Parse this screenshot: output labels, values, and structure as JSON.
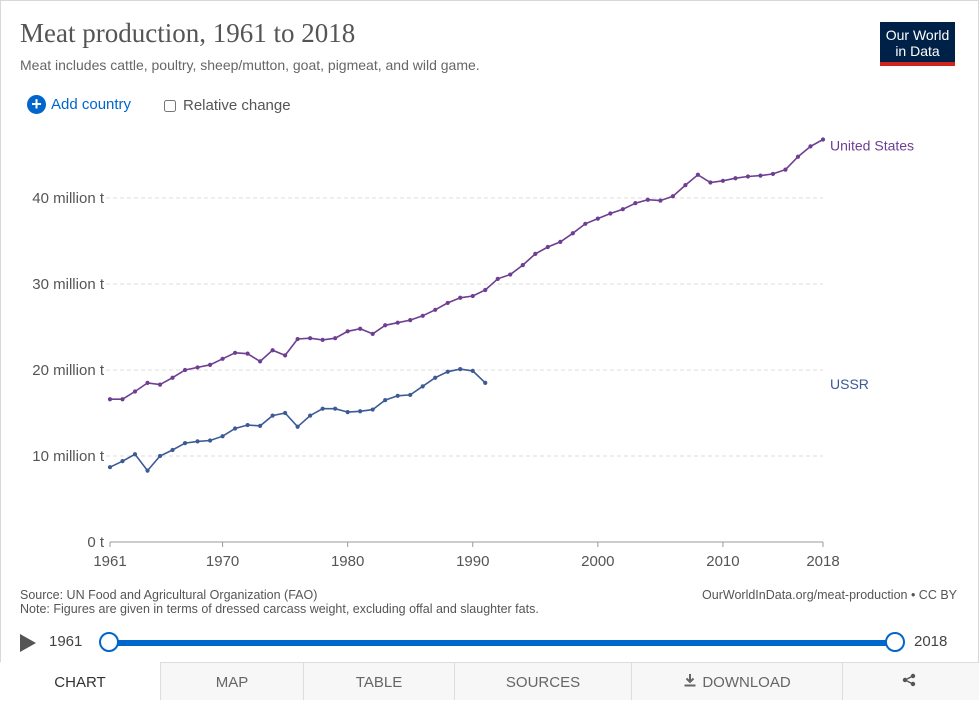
{
  "header": {
    "title": "Meat production, 1961 to 2018",
    "subtitle": "Meat includes cattle, poultry, sheep/mutton, goat, pigmeat, and wild game.",
    "logo_line1": "Our World",
    "logo_line2": "in Data"
  },
  "controls": {
    "add_country": "Add country",
    "relative_change": "Relative change"
  },
  "chart_data": {
    "type": "line",
    "title": "Meat production, 1961 to 2018",
    "xlabel": "",
    "ylabel": "",
    "xlim": [
      1961,
      2018
    ],
    "ylim": [
      0,
      47
    ],
    "x_ticks": [
      1961,
      1970,
      1980,
      1990,
      2000,
      2010,
      2018
    ],
    "y_ticks": [
      0,
      10,
      20,
      30,
      40
    ],
    "y_tick_labels": [
      "0 t",
      "10 million t",
      "20 million t",
      "30 million t",
      "40 million t"
    ],
    "series": [
      {
        "name": "United States",
        "color": "#6d3e91",
        "x": [
          1961,
          1962,
          1963,
          1964,
          1965,
          1966,
          1967,
          1968,
          1969,
          1970,
          1971,
          1972,
          1973,
          1974,
          1975,
          1976,
          1977,
          1978,
          1979,
          1980,
          1981,
          1982,
          1983,
          1984,
          1985,
          1986,
          1987,
          1988,
          1989,
          1990,
          1991,
          1992,
          1993,
          1994,
          1995,
          1996,
          1997,
          1998,
          1999,
          2000,
          2001,
          2002,
          2003,
          2004,
          2005,
          2006,
          2007,
          2008,
          2009,
          2010,
          2011,
          2012,
          2013,
          2014,
          2015,
          2016,
          2017,
          2018
        ],
        "values": [
          16.6,
          16.6,
          17.5,
          18.5,
          18.3,
          19.1,
          20.0,
          20.3,
          20.6,
          21.3,
          22.0,
          21.9,
          21.0,
          22.3,
          21.7,
          23.6,
          23.7,
          23.5,
          23.7,
          24.5,
          24.8,
          24.2,
          25.2,
          25.5,
          25.8,
          26.3,
          27.0,
          27.8,
          28.4,
          28.6,
          29.3,
          30.6,
          31.1,
          32.2,
          33.5,
          34.3,
          34.9,
          35.9,
          37.0,
          37.6,
          38.2,
          38.7,
          39.4,
          39.8,
          39.7,
          40.2,
          41.5,
          42.7,
          41.8,
          42.0,
          42.3,
          42.5,
          42.6,
          42.8,
          43.3,
          44.8,
          46.0,
          46.8
        ]
      },
      {
        "name": "USSR",
        "color": "#3c5a94",
        "x": [
          1961,
          1962,
          1963,
          1964,
          1965,
          1966,
          1967,
          1968,
          1969,
          1970,
          1971,
          1972,
          1973,
          1974,
          1975,
          1976,
          1977,
          1978,
          1979,
          1980,
          1981,
          1982,
          1983,
          1984,
          1985,
          1986,
          1987,
          1988,
          1989,
          1990,
          1991
        ],
        "values": [
          8.7,
          9.4,
          10.2,
          8.3,
          10.0,
          10.7,
          11.5,
          11.7,
          11.8,
          12.3,
          13.2,
          13.6,
          13.5,
          14.7,
          15.0,
          13.4,
          14.7,
          15.5,
          15.5,
          15.1,
          15.2,
          15.4,
          16.5,
          17.0,
          17.1,
          18.1,
          19.1,
          19.8,
          20.1,
          19.9,
          18.5
        ]
      }
    ]
  },
  "footer": {
    "source": "Source: UN Food and Agricultural Organization (FAO)",
    "note": "Note: Figures are given in terms of dressed carcass weight, excluding offal and slaughter fats.",
    "url": "OurWorldInData.org/meat-production • CC BY"
  },
  "timeline": {
    "start": "1961",
    "end": "2018"
  },
  "tabs": [
    {
      "id": "chart",
      "label": "CHART"
    },
    {
      "id": "map",
      "label": "MAP"
    },
    {
      "id": "table",
      "label": "TABLE"
    },
    {
      "id": "sources",
      "label": "SOURCES"
    },
    {
      "id": "download",
      "label": "DOWNLOAD"
    },
    {
      "id": "share",
      "label": ""
    }
  ]
}
